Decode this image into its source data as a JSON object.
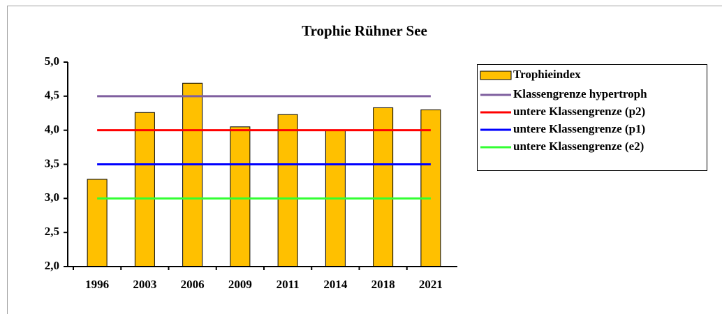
{
  "chart_data": {
    "type": "bar",
    "title": "Trophie Rühner See",
    "categories": [
      "1996",
      "2003",
      "2006",
      "2009",
      "2011",
      "2014",
      "2018",
      "2021"
    ],
    "series": [
      {
        "name": "Trophieindex",
        "type": "bar",
        "color": "#ffc000",
        "values": [
          3.28,
          4.26,
          4.69,
          4.05,
          4.23,
          4.0,
          4.33,
          4.3
        ]
      },
      {
        "name": "Klassengrenze hypertroph",
        "type": "line",
        "color": "#7f5f9f",
        "values": [
          4.5,
          4.5,
          4.5,
          4.5,
          4.5,
          4.5,
          4.5,
          4.5
        ]
      },
      {
        "name": "untere Klassengrenze (p2)",
        "type": "line",
        "color": "#ff0000",
        "values": [
          4.0,
          4.0,
          4.0,
          4.0,
          4.0,
          4.0,
          4.0,
          4.0
        ]
      },
      {
        "name": "untere Klassengrenze (p1)",
        "type": "line",
        "color": "#0000ff",
        "values": [
          3.5,
          3.5,
          3.5,
          3.5,
          3.5,
          3.5,
          3.5,
          3.5
        ]
      },
      {
        "name": "untere Klassengrenze (e2)",
        "type": "line",
        "color": "#33ff33",
        "values": [
          3.0,
          3.0,
          3.0,
          3.0,
          3.0,
          3.0,
          3.0,
          3.0
        ]
      }
    ],
    "ylim": [
      2.0,
      5.0
    ],
    "yticks": [
      {
        "value": 2.0,
        "label": "2,0"
      },
      {
        "value": 2.5,
        "label": "2,5"
      },
      {
        "value": 3.0,
        "label": "3,0"
      },
      {
        "value": 3.5,
        "label": "3,5"
      },
      {
        "value": 4.0,
        "label": "4,0"
      },
      {
        "value": 4.5,
        "label": "4,5"
      },
      {
        "value": 5.0,
        "label": "5,0"
      }
    ],
    "grid": false,
    "legend": "right"
  }
}
